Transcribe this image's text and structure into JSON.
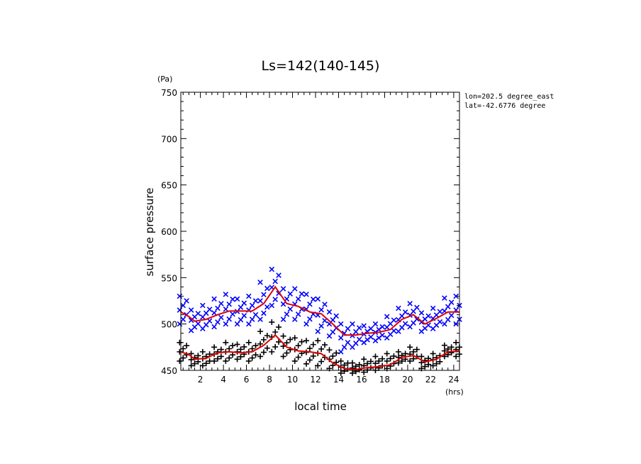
{
  "chart_data": {
    "type": "scatter",
    "title": "Ls=142(140-145)",
    "xlabel": "local time",
    "ylabel": "surface pressure",
    "x_unit": "(hrs)",
    "y_unit": "(Pa)",
    "info_lines": [
      "lon=202.5 degree_east",
      "lat=-42.6776 degree"
    ],
    "xlim": [
      0.3,
      24.5
    ],
    "ylim": [
      450,
      750
    ],
    "x_major_ticks": [
      2,
      4,
      6,
      8,
      10,
      12,
      14,
      16,
      18,
      20,
      22,
      24
    ],
    "x_minor_step": 0.5,
    "y_major_ticks": [
      450,
      500,
      550,
      600,
      650,
      700,
      750
    ],
    "y_minor_step": 10,
    "grid": false,
    "legend": "none",
    "series": [
      {
        "marker": "x",
        "color": "#0000ff",
        "x": [
          0.5,
          1.5,
          2.5,
          3.5,
          4.5,
          5.5,
          6.5,
          7.5,
          8.5,
          9.5,
          10.5,
          11.5,
          12.5,
          13.5,
          14.5,
          15.5,
          16.5,
          17.5,
          18.5,
          19.5,
          20.5,
          21.5,
          22.5,
          23.5,
          24.5
        ],
        "y_min": [
          500,
          493,
          495,
          497,
          500,
          500,
          500,
          505,
          520,
          505,
          505,
          500,
          492,
          487,
          470,
          475,
          480,
          482,
          485,
          492,
          497,
          492,
          495,
          500,
          500
        ],
        "y_max": [
          530,
          515,
          520,
          527,
          532,
          527,
          530,
          545,
          559,
          538,
          538,
          532,
          527,
          513,
          500,
          500,
          498,
          500,
          508,
          517,
          522,
          512,
          517,
          528,
          530
        ]
      },
      {
        "marker": "+",
        "color": "#000000",
        "x": [
          0.5,
          1.5,
          2.5,
          3.5,
          4.5,
          5.5,
          6.5,
          7.5,
          8.5,
          9.5,
          10.5,
          11.5,
          12.5,
          13.5,
          14.5,
          15.5,
          16.5,
          17.5,
          18.5,
          19.5,
          20.5,
          21.5,
          22.5,
          23.5,
          24.5
        ],
        "y_min": [
          460,
          455,
          455,
          460,
          460,
          462,
          460,
          465,
          470,
          465,
          460,
          457,
          455,
          452,
          447,
          447,
          448,
          450,
          452,
          458,
          460,
          452,
          455,
          465,
          465
        ],
        "y_max": [
          480,
          468,
          470,
          475,
          480,
          478,
          480,
          492,
          502,
          487,
          485,
          482,
          482,
          472,
          460,
          458,
          462,
          465,
          468,
          470,
          475,
          465,
          468,
          477,
          480
        ]
      }
    ],
    "mean_lines": [
      {
        "color": "#dd0000",
        "x": [
          0.3,
          1.0,
          1.5,
          2.5,
          3.5,
          4.5,
          5.5,
          6.5,
          7.5,
          8.5,
          9.5,
          10.5,
          11.5,
          12.5,
          13.5,
          14.5,
          15.5,
          16.5,
          17.5,
          18.5,
          19.5,
          20.5,
          21.5,
          22.5,
          23.5,
          24.5
        ],
        "y": [
          513,
          508,
          503,
          505,
          510,
          514,
          514,
          514,
          522,
          540,
          522,
          519,
          513,
          511,
          500,
          488,
          488,
          490,
          491,
          494,
          505,
          510,
          500,
          506,
          513,
          513
        ]
      },
      {
        "color": "#dd0000",
        "x": [
          0.3,
          1.0,
          1.5,
          2.5,
          3.5,
          4.5,
          5.5,
          6.5,
          7.5,
          8.5,
          9.5,
          10.5,
          11.5,
          12.5,
          13.5,
          14.5,
          15.5,
          16.5,
          17.5,
          18.5,
          19.5,
          20.5,
          21.5,
          22.5,
          23.5,
          24.5
        ],
        "y": [
          470,
          467,
          462,
          463,
          469,
          470,
          469,
          470,
          477,
          488,
          475,
          471,
          470,
          468,
          458,
          452,
          451,
          453,
          454,
          456,
          464,
          466,
          459,
          462,
          470,
          471
        ]
      }
    ]
  }
}
